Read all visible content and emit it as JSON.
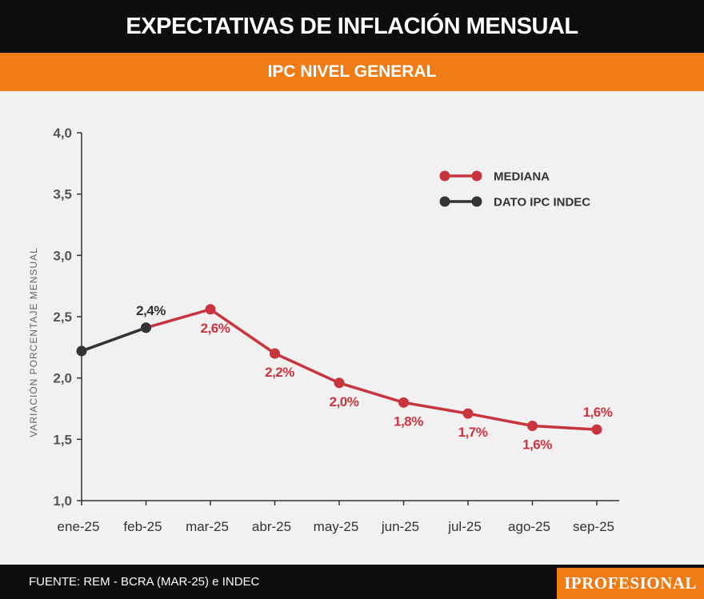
{
  "header": {
    "title": "EXPECTATIVAS DE INFLACIÓN MENSUAL",
    "subtitle": "IPC NIVEL GENERAL"
  },
  "footer": {
    "source": "FUENTE: REM - BCRA (MAR-25) e INDEC",
    "logo": "IPROFESIONAL"
  },
  "colors": {
    "mediana": "#c9353f",
    "dato": "#333333",
    "accent": "#ee7b14"
  },
  "chart_data": {
    "type": "line",
    "title": "IPC NIVEL GENERAL",
    "ylabel": "VARIACIÓN PORCENTAJE MENSUAL",
    "xlabel": "",
    "ylim": [
      1.0,
      4.0
    ],
    "yticks": [
      1.0,
      1.5,
      2.0,
      2.5,
      3.0,
      3.5,
      4.0
    ],
    "ytick_labels": [
      "1,0",
      "1,5",
      "2,0",
      "2,5",
      "3,0",
      "3,5",
      "4,0"
    ],
    "categories": [
      "ene-25",
      "feb-25",
      "mar-25",
      "abr-25",
      "may-25",
      "jun-25",
      "jul-25",
      "ago-25",
      "sep-25"
    ],
    "legend_position": "top-right",
    "series": [
      {
        "name": "MEDIANA",
        "color": "#c9353f",
        "x": [
          "feb-25",
          "mar-25",
          "abr-25",
          "may-25",
          "jun-25",
          "jul-25",
          "ago-25",
          "sep-25"
        ],
        "values": [
          2.41,
          2.56,
          2.2,
          1.96,
          1.8,
          1.71,
          1.61,
          1.58
        ],
        "labels": [
          "",
          "2,6%",
          "2,2%",
          "2,0%",
          "1,8%",
          "1,7%",
          "1,6%",
          "1,6%"
        ]
      },
      {
        "name": "DATO IPC INDEC",
        "color": "#333333",
        "x": [
          "ene-25",
          "feb-25"
        ],
        "values": [
          2.22,
          2.41
        ],
        "labels": [
          "",
          "2,4%"
        ]
      }
    ]
  }
}
